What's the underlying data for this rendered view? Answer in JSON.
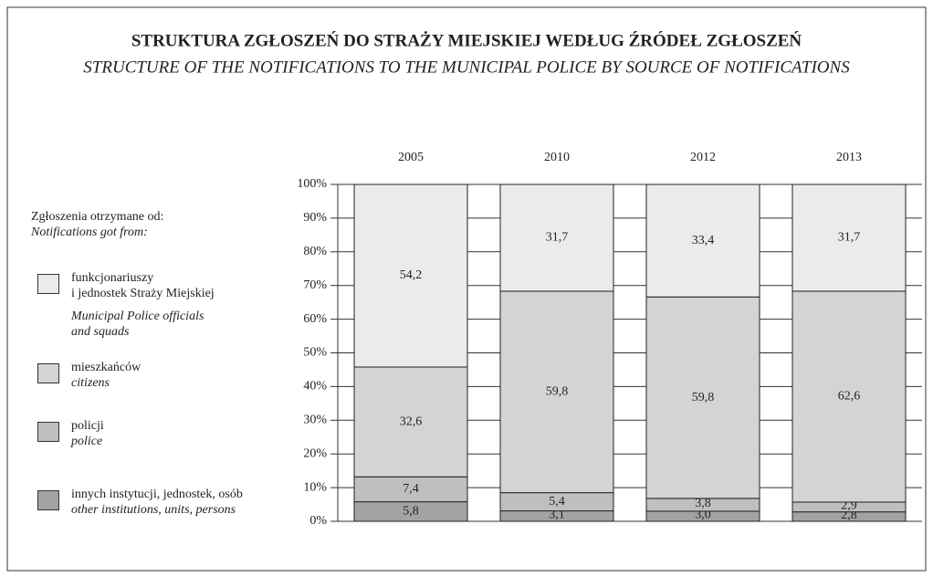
{
  "chart_data": {
    "type": "stacked_bar",
    "title": "STRUKTURA ZGŁOSZEŃ DO STRAŻY MIEJSKIEJ WEDŁUG ŹRÓDEŁ ZGŁOSZEŃ",
    "subtitle": "STRUCTURE OF THE NOTIFICATIONS TO THE MUNICIPAL POLICE BY SOURCE OF NOTIFICATIONS",
    "legend_title": "Zgłoszenia otrzymane od:",
    "legend_title_en": "Notifications got from:",
    "categories": [
      "2005",
      "2010",
      "2012",
      "2013"
    ],
    "series": [
      {
        "name": "funkcjonariuszy\ni jednostek Straży Miejskiej",
        "name_en": "Municipal Police officials\nand squads",
        "color": "#ebebeb",
        "values": [
          54.2,
          31.7,
          33.4,
          31.7
        ],
        "value_labels": [
          "54,2",
          "31,7",
          "33,4",
          "31,7"
        ]
      },
      {
        "name": "mieszkańców",
        "name_en": "citizens",
        "color": "#d4d4d4",
        "values": [
          32.6,
          59.8,
          59.8,
          62.6
        ],
        "value_labels": [
          "32,6",
          "59,8",
          "59,8",
          "62,6"
        ]
      },
      {
        "name": "policji",
        "name_en": "police",
        "color": "#bfbfbf",
        "values": [
          7.4,
          5.4,
          3.8,
          2.9
        ],
        "value_labels": [
          "7,4",
          "5,4",
          "3,8",
          "2,9"
        ]
      },
      {
        "name": "innych instytucji, jednostek, osób",
        "name_en": "other institutions, units, persons",
        "color": "#a3a3a3",
        "values": [
          5.8,
          3.1,
          3.0,
          2.8
        ],
        "value_labels": [
          "5,8",
          "3,1",
          "3,0",
          "2,8"
        ]
      }
    ],
    "ylim": [
      0,
      100
    ],
    "yticks": [
      {
        "value": 0,
        "label": "0%"
      },
      {
        "value": 10,
        "label": "10%"
      },
      {
        "value": 20,
        "label": "20%"
      },
      {
        "value": 30,
        "label": "30%"
      },
      {
        "value": 40,
        "label": "40%"
      },
      {
        "value": 50,
        "label": "50%"
      },
      {
        "value": 60,
        "label": "60%"
      },
      {
        "value": 70,
        "label": "70%"
      },
      {
        "value": 80,
        "label": "80%"
      },
      {
        "value": 90,
        "label": "90%"
      },
      {
        "value": 100,
        "label": "100%"
      }
    ],
    "grid": true
  }
}
